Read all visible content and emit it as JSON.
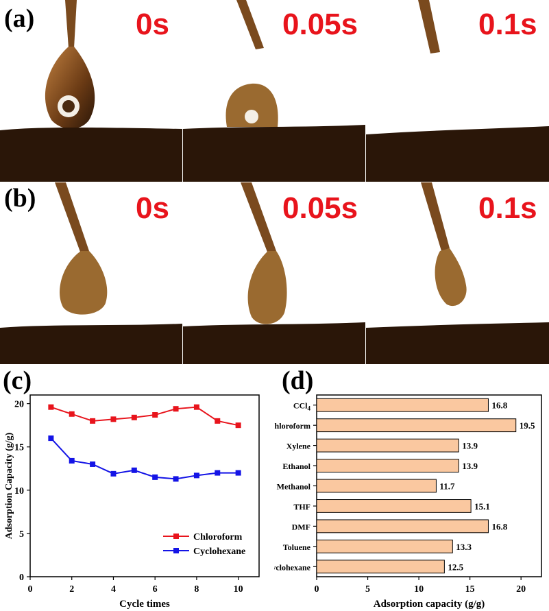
{
  "panel_a": {
    "label": "(a)",
    "timestamps": [
      "0s",
      "0.05s",
      "0.1s"
    ]
  },
  "panel_b": {
    "label": "(b)",
    "timestamps": [
      "0s",
      "0.05s",
      "0.1s"
    ]
  },
  "panel_c": {
    "label": "(c)"
  },
  "panel_d": {
    "label": "(d)"
  },
  "colors": {
    "timestamp": "#e8141c",
    "chloroform": "#e8141c",
    "cyclohexane": "#1414e6",
    "bar_fill": "#fac8a0",
    "photo_dark": "#2a1608",
    "photo_light": "#ffffff"
  },
  "chart_data": [
    {
      "type": "line",
      "xlabel": "Cycle times",
      "ylabel": "Adsorption Capacity (g/g)",
      "xlim": [
        0,
        11
      ],
      "ylim": [
        0,
        21
      ],
      "xticks": [
        0,
        2,
        4,
        6,
        8,
        10
      ],
      "yticks": [
        0,
        5,
        10,
        15,
        20
      ],
      "legend_position": "bottom-right",
      "grid": false,
      "x": [
        1,
        2,
        3,
        4,
        5,
        6,
        7,
        8,
        9,
        10
      ],
      "series": [
        {
          "name": "Chloroform",
          "color": "#e8141c",
          "values": [
            19.6,
            18.8,
            18.0,
            18.2,
            18.4,
            18.7,
            19.4,
            19.6,
            18.0,
            17.5
          ]
        },
        {
          "name": "Cyclohexane",
          "color": "#1414e6",
          "values": [
            16.0,
            13.4,
            13.0,
            11.9,
            12.3,
            11.5,
            11.3,
            11.7,
            12.0,
            12.0
          ]
        }
      ]
    },
    {
      "type": "bar",
      "orientation": "horizontal",
      "xlabel": "Adsorption capacity (g/g)",
      "xlim": [
        0,
        22
      ],
      "xticks": [
        0,
        5,
        10,
        15,
        20
      ],
      "grid": false,
      "categories": [
        "CCl4",
        "Chloroform",
        "Xylene",
        "Ethanol",
        "Methanol",
        "THF",
        "DMF",
        "Toluene",
        "Cyclohexane"
      ],
      "values": [
        16.8,
        19.5,
        13.9,
        13.9,
        11.7,
        15.1,
        16.8,
        13.3,
        12.5
      ],
      "value_labels": [
        "16.8",
        "19.5",
        "13.9",
        "13.9",
        "11.7",
        "15.1",
        "16.8",
        "13.3",
        "12.5"
      ]
    }
  ]
}
